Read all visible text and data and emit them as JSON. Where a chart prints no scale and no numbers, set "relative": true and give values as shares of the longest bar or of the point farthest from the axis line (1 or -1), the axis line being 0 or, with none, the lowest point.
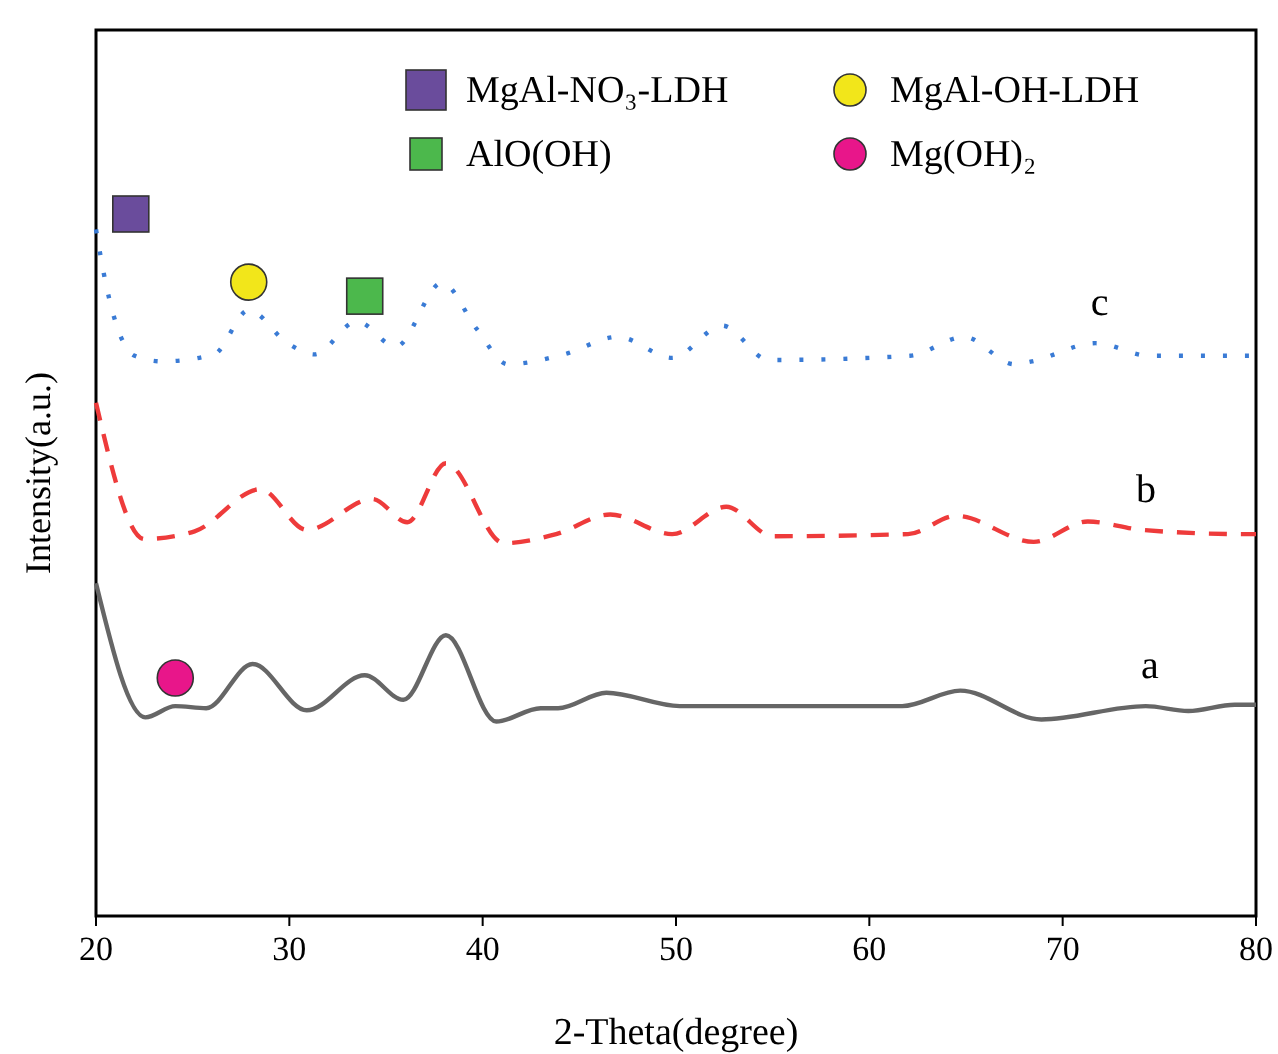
{
  "chart_data": {
    "type": "line",
    "relative": true,
    "xlabel": "2-Theta(degree)",
    "ylabel": "Intensity(a.u.)",
    "xlim": [
      20,
      80
    ],
    "xticks": [
      20,
      30,
      40,
      50,
      60,
      70,
      80
    ],
    "grid": false,
    "legend": "top",
    "series": [
      {
        "name": "a",
        "color": "#666666",
        "line_style": "solid",
        "x": [
          20,
          22.55,
          24.1,
          25.7,
          28.1,
          30.9,
          33.9,
          35.9,
          38.1,
          40.7,
          43.0,
          43.9,
          46.4,
          50.2,
          61.7,
          64.7,
          68.9,
          74.3,
          76.5,
          78.9,
          80
        ],
        "values": [
          0.474,
          0.283,
          0.299,
          0.296,
          0.359,
          0.293,
          0.343,
          0.308,
          0.4,
          0.277,
          0.296,
          0.296,
          0.318,
          0.299,
          0.299,
          0.321,
          0.28,
          0.299,
          0.292,
          0.301,
          0.301
        ]
      },
      {
        "name": "b",
        "color": "#ee3b3b",
        "line_style": "dashed",
        "x": [
          20,
          22.5,
          25.1,
          28.5,
          30.9,
          34.3,
          36.1,
          38.1,
          41.1,
          43.8,
          46.6,
          49.8,
          52.6,
          55.0,
          62.0,
          64.5,
          68.5,
          71.3,
          74.1,
          79.3,
          80
        ],
        "values": [
          0.731,
          0.537,
          0.548,
          0.608,
          0.55,
          0.594,
          0.561,
          0.645,
          0.531,
          0.544,
          0.572,
          0.544,
          0.583,
          0.541,
          0.544,
          0.57,
          0.533,
          0.562,
          0.55,
          0.544,
          0.544
        ]
      },
      {
        "name": "c",
        "color": "#3a7bd5",
        "line_style": "dotted",
        "x": [
          20,
          20.5,
          22.0,
          23.4,
          26.1,
          27.9,
          29.9,
          31.3,
          33.5,
          35.5,
          37.9,
          39.7,
          41.3,
          44.2,
          47.0,
          49.8,
          52.4,
          54.8,
          62.1,
          64.9,
          67.5,
          68.4,
          71.7,
          74.5,
          80
        ],
        "values": [
          0.978,
          0.902,
          0.798,
          0.79,
          0.8,
          0.863,
          0.816,
          0.8,
          0.847,
          0.811,
          0.902,
          0.836,
          0.786,
          0.8,
          0.825,
          0.795,
          0.841,
          0.792,
          0.798,
          0.825,
          0.786,
          0.79,
          0.816,
          0.798,
          0.798
        ]
      },
      {
        "type": "scatter",
        "name": "MgAl-NO₃-LDH",
        "color": "#6a4c9c",
        "marker": "square",
        "x": [
          21.8
        ],
        "values": [
          1.0
        ]
      },
      {
        "type": "scatter",
        "name": "MgAl-OH-LDH",
        "color": "#f2e61a",
        "marker": "circle",
        "x": [
          27.9
        ],
        "values": [
          0.903
        ]
      },
      {
        "type": "scatter",
        "name": "AlO(OH)",
        "color": "#4cb84c",
        "marker": "square",
        "x": [
          33.9
        ],
        "values": [
          0.883
        ]
      },
      {
        "type": "scatter",
        "name": "Mg(OH)₂",
        "color": "#e8168a",
        "marker": "circle",
        "x": [
          24.1
        ],
        "values": [
          0.339
        ]
      }
    ]
  }
}
